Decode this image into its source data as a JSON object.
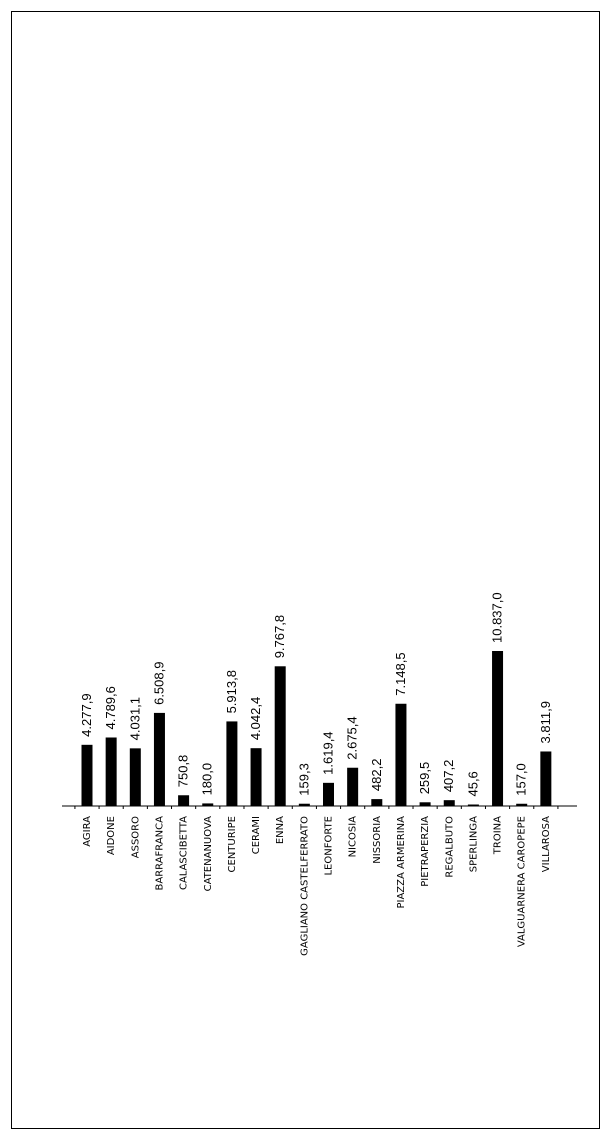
{
  "chart_data": {
    "type": "bar",
    "categories": [
      "AGIRA",
      "AIDONE",
      "ASSORO",
      "BARRAFRANCA",
      "CALASCIBETTA",
      "CATENANUOVA",
      "CENTURIPE",
      "CERAMI",
      "ENNA",
      "GAGLIANO CASTELFERRATO",
      "LEONFORTE",
      "NICOSIA",
      "NISSORIA",
      "PIAZZA ARMERINA",
      "PIETRAPERZIA",
      "REGALBUTO",
      "SPERLINGA",
      "TROINA",
      "VALGUARNERA CAROPEPE",
      "VILLAROSA"
    ],
    "values": [
      4277.9,
      4789.6,
      4031.1,
      6508.9,
      750.8,
      180.0,
      5913.8,
      4042.4,
      9767.8,
      159.3,
      1619.4,
      2675.4,
      482.2,
      7148.5,
      259.5,
      407.2,
      45.6,
      10837.0,
      157.0,
      3811.9
    ],
    "value_labels": [
      "4.277,9",
      "4.789,6",
      "4.031,1",
      "6.508,9",
      "750,8",
      "180,0",
      "5.913,8",
      "4.042,4",
      "9.767,8",
      "159,3",
      "1.619,4",
      "2.675,4",
      "482,2",
      "7.148,5",
      "259,5",
      "407,2",
      "45,6",
      "10.837,0",
      "157,0",
      "3.811,9"
    ],
    "title": "",
    "xlabel": "",
    "ylabel": "",
    "ylim": [
      0,
      10837.0
    ],
    "grid": false,
    "legend": "none",
    "bar_color": "#000000"
  }
}
